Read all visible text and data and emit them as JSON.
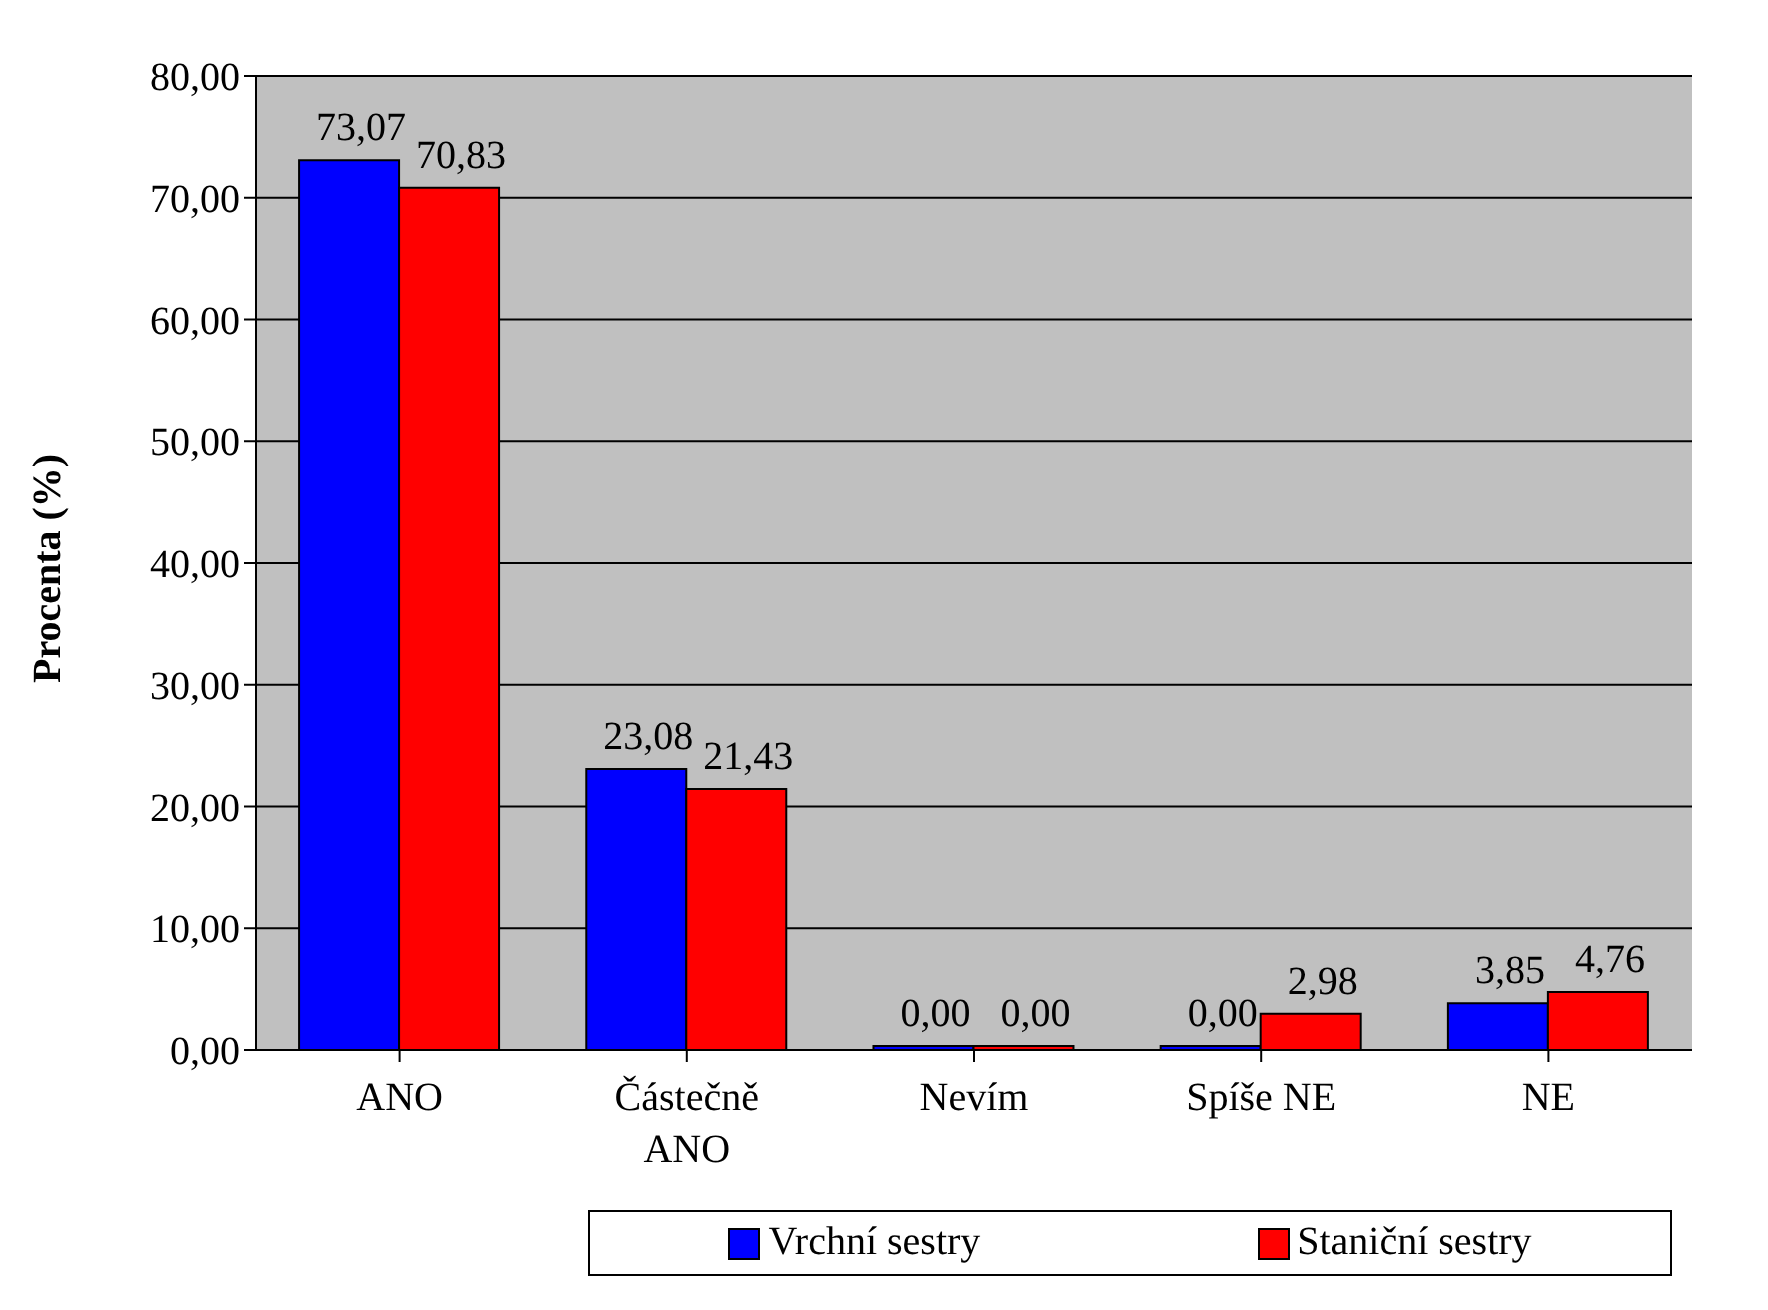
{
  "chart_data": {
    "type": "bar",
    "ylabel": "Procenta (%)",
    "categories": [
      "ANO",
      "Částečně ANO",
      "Nevím",
      "Spíše NE",
      "NE"
    ],
    "series": [
      {
        "name": "Vrchní sestry",
        "color": "#0000ff",
        "values": [
          73.07,
          23.08,
          0,
          0,
          3.85
        ],
        "value_labels": [
          "73,07",
          "23,08",
          "0,00",
          "0,00",
          "3,85"
        ]
      },
      {
        "name": "Staniční sestry",
        "color": "#ff0000",
        "values": [
          70.83,
          21.43,
          0,
          2.98,
          4.76
        ],
        "value_labels": [
          "70,83",
          "21,43",
          "0,00",
          "2,98",
          "4,76"
        ]
      }
    ],
    "ylim": [
      0,
      80
    ],
    "yticks": [
      {
        "value": 0,
        "label": "0,00"
      },
      {
        "value": 10,
        "label": "10,00"
      },
      {
        "value": 20,
        "label": "20,00"
      },
      {
        "value": 30,
        "label": "30,00"
      },
      {
        "value": 40,
        "label": "40,00"
      },
      {
        "value": 50,
        "label": "50,00"
      },
      {
        "value": 60,
        "label": "60,00"
      },
      {
        "value": 70,
        "label": "70,00"
      },
      {
        "value": 80,
        "label": "80,00"
      }
    ],
    "grid": "y",
    "legend": "bottom"
  }
}
